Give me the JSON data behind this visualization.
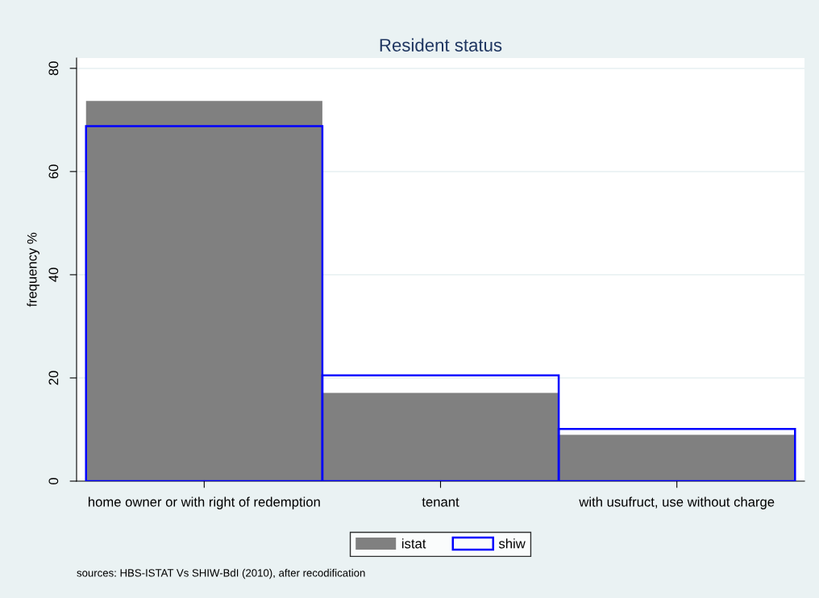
{
  "chart_data": {
    "type": "bar",
    "title": "Resident status",
    "ylabel": "frequency %",
    "categories": [
      "home owner or with right of redemption",
      "tenant",
      "with usufruct, use without charge"
    ],
    "series": [
      {
        "name": "istat",
        "color": "#808080",
        "values": [
          73.7,
          17.1,
          9.0
        ]
      },
      {
        "name": "shiw",
        "color": "#0000ff",
        "values": [
          68.8,
          20.5,
          10.1
        ]
      }
    ],
    "ylim": [
      0,
      82
    ],
    "yticks": [
      0,
      20,
      40,
      60,
      80
    ],
    "grid": "y",
    "legend": "bottom",
    "annotations": [
      "sources: HBS-ISTAT Vs SHIW-BdI (2010), after recodification"
    ]
  }
}
